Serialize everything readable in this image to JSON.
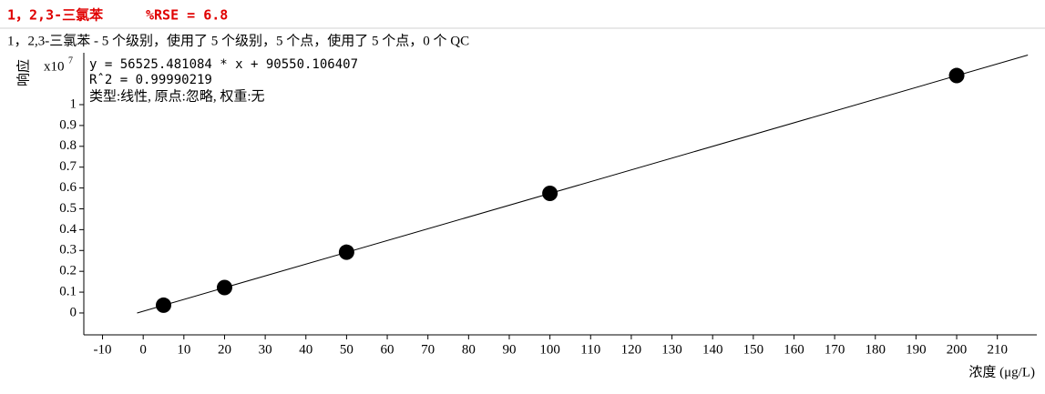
{
  "chart_data": {
    "type": "scatter",
    "title": "1，2,3-三氯苯",
    "rse_label": "%RSE = 6.8",
    "subtitle": "1，2,3-三氯苯 - 5 个级别，使用了 5 个级别，5 个点，使用了 5 个点，0 个 QC",
    "annotations": [
      "y = 56525.481084 * x   + 90550.106407",
      "Rˆ2 = 0.99990219",
      "类型:线性, 原点:忽略, 权重:无"
    ],
    "y_label": "响应",
    "y_multiplier": {
      "base": "x10",
      "exponent": "7"
    },
    "x_label": "浓度 (μg/L)",
    "x": [
      5,
      20,
      50,
      100,
      200
    ],
    "series": [
      {
        "color": "#000000",
        "values": [
          0.0373,
          0.1221,
          0.2917,
          0.5743,
          1.1396
        ]
      }
    ],
    "fit": {
      "color": "#000000",
      "x": [
        -1.5,
        217.5
      ],
      "values": [
        0.0,
        1.238
      ]
    },
    "xlim": [
      -14.6,
      219.7
    ],
    "xticks": [
      -10,
      0,
      10,
      20,
      30,
      40,
      50,
      60,
      70,
      80,
      90,
      100,
      110,
      120,
      130,
      140,
      150,
      160,
      170,
      180,
      190,
      200,
      210
    ],
    "ylim": [
      -0.105,
      1.249
    ],
    "yticks": [
      0,
      0.1,
      0.2,
      0.3,
      0.4,
      0.5,
      0.6,
      0.7,
      0.8,
      0.9,
      1
    ]
  }
}
